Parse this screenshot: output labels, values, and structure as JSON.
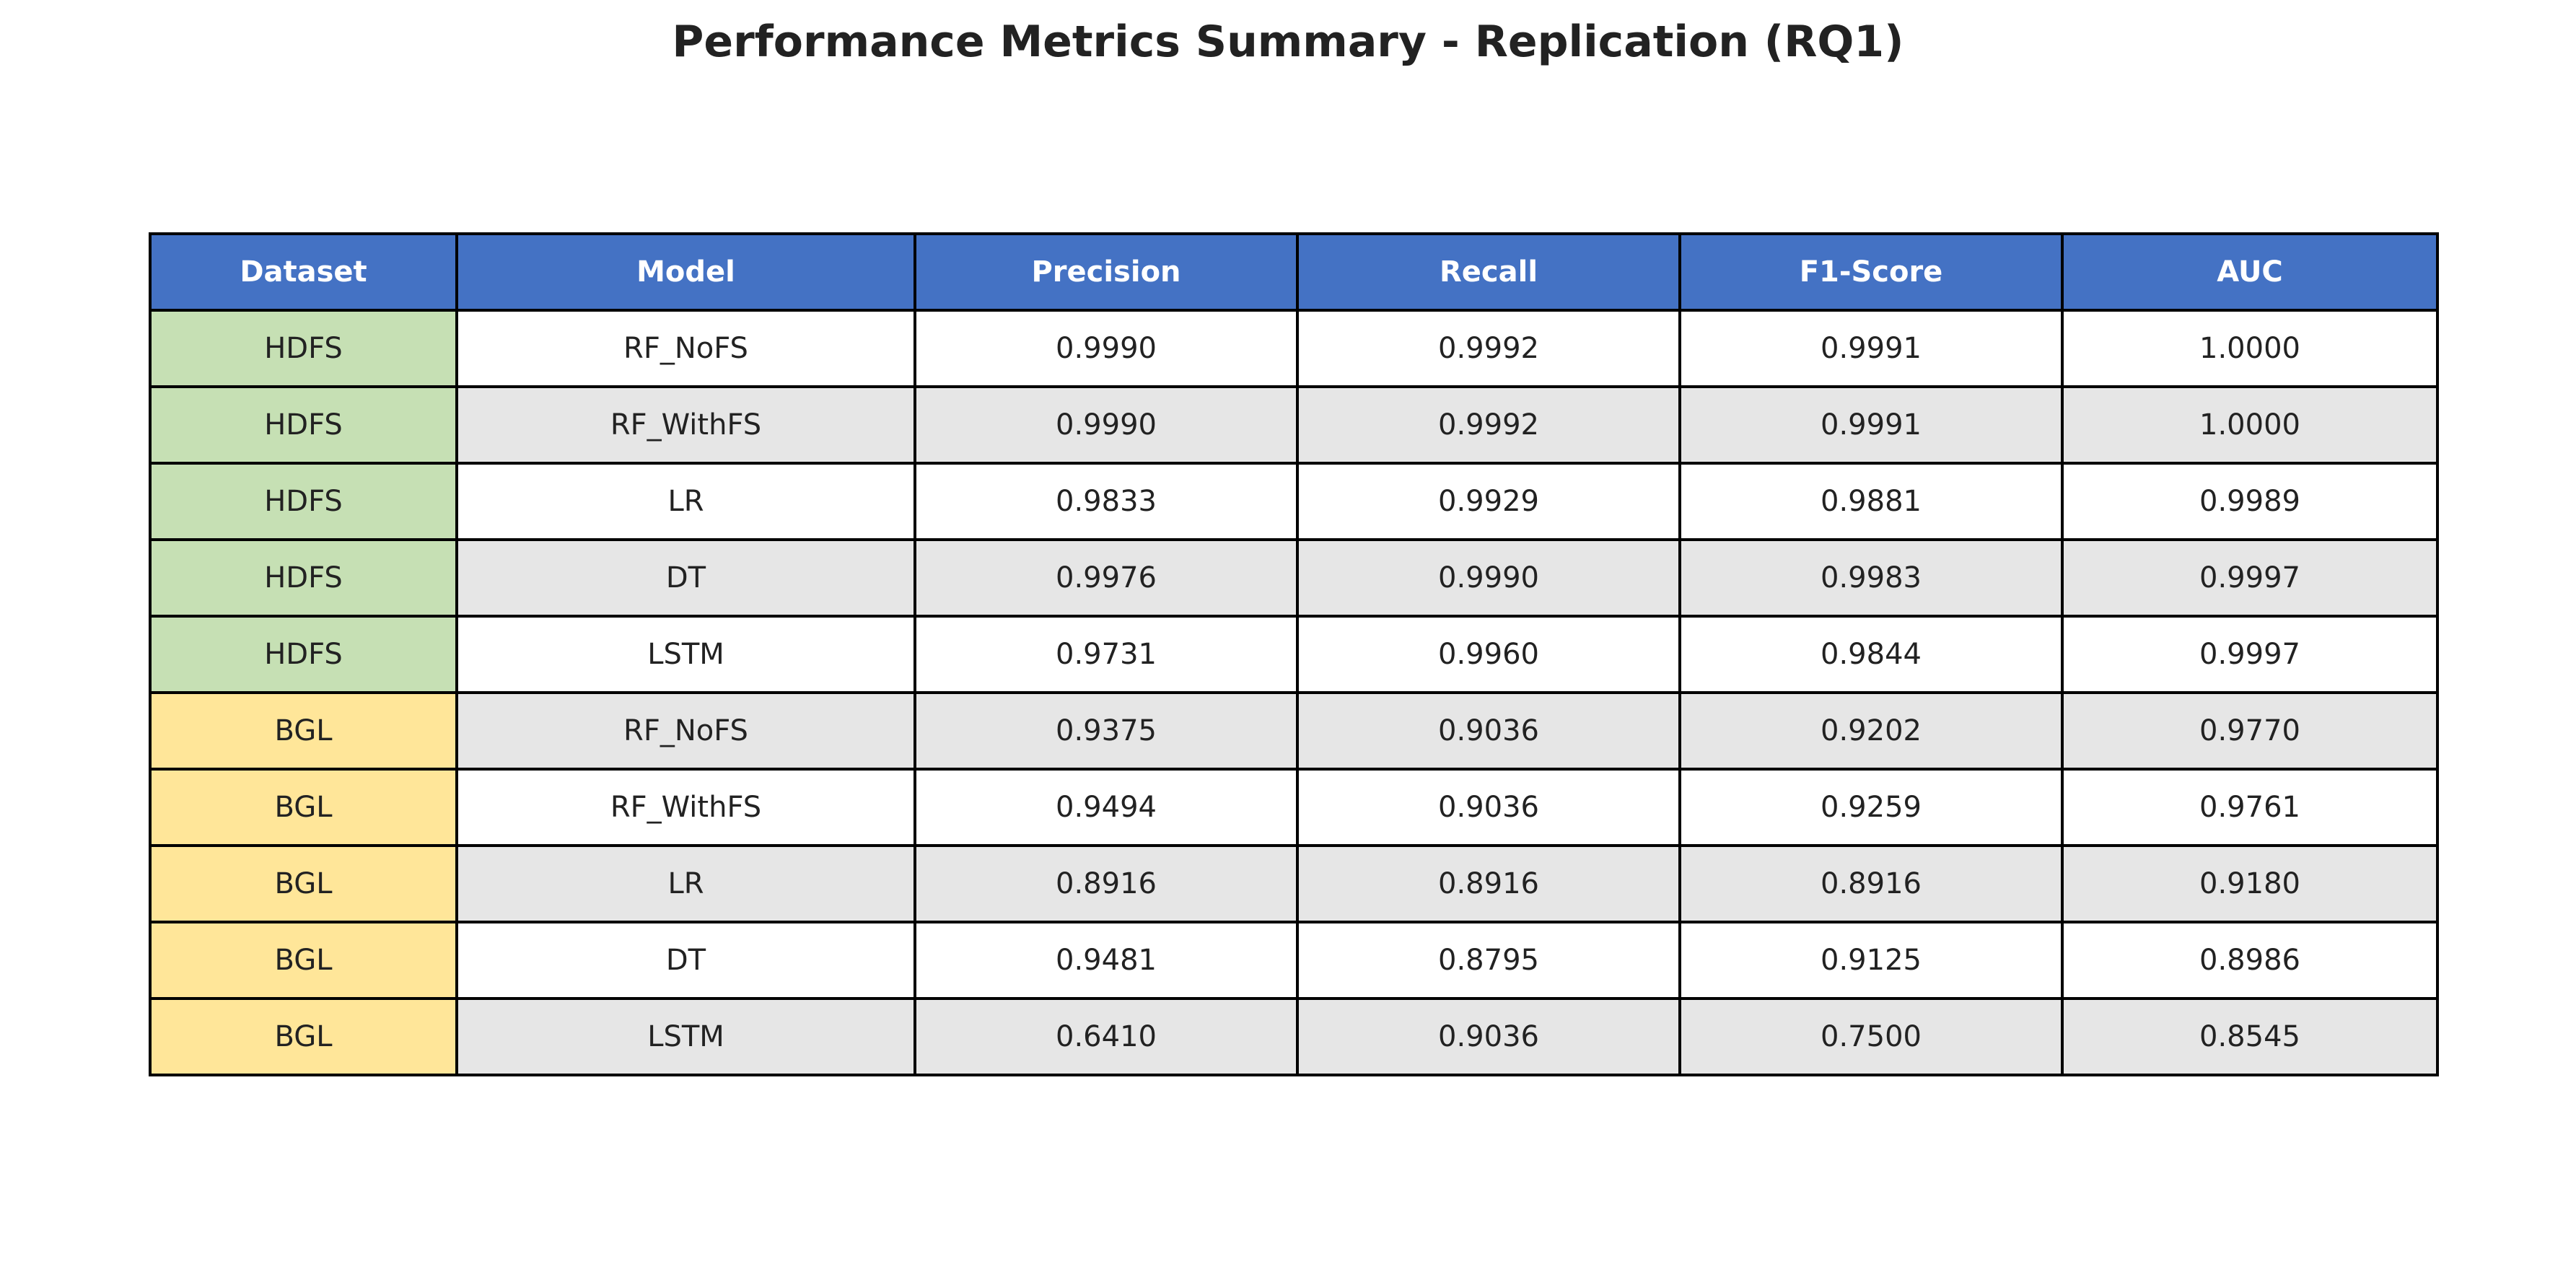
{
  "chart_data": {
    "type": "table",
    "title": "Performance Metrics Summary - Replication (RQ1)",
    "columns": [
      "Dataset",
      "Model",
      "Precision",
      "Recall",
      "F1-Score",
      "AUC"
    ],
    "rows": [
      [
        "HDFS",
        "RF_NoFS",
        "0.9990",
        "0.9992",
        "0.9991",
        "1.0000"
      ],
      [
        "HDFS",
        "RF_WithFS",
        "0.9990",
        "0.9992",
        "0.9991",
        "1.0000"
      ],
      [
        "HDFS",
        "LR",
        "0.9833",
        "0.9929",
        "0.9881",
        "0.9989"
      ],
      [
        "HDFS",
        "DT",
        "0.9976",
        "0.9990",
        "0.9983",
        "0.9997"
      ],
      [
        "HDFS",
        "LSTM",
        "0.9731",
        "0.9960",
        "0.9844",
        "0.9997"
      ],
      [
        "BGL",
        "RF_NoFS",
        "0.9375",
        "0.9036",
        "0.9202",
        "0.9770"
      ],
      [
        "BGL",
        "RF_WithFS",
        "0.9494",
        "0.9036",
        "0.9259",
        "0.9761"
      ],
      [
        "BGL",
        "LR",
        "0.8916",
        "0.8916",
        "0.8916",
        "0.9180"
      ],
      [
        "BGL",
        "DT",
        "0.9481",
        "0.8795",
        "0.9125",
        "0.8986"
      ],
      [
        "BGL",
        "LSTM",
        "0.6410",
        "0.9036",
        "0.7500",
        "0.8545"
      ]
    ],
    "colors": {
      "header": "#4472c4",
      "header_text": "#ffffff",
      "row_white": "#ffffff",
      "row_gray": "#e6e6e6",
      "dataset_colors": {
        "HDFS": "#c6e0b4",
        "BGL": "#ffe699"
      }
    }
  }
}
